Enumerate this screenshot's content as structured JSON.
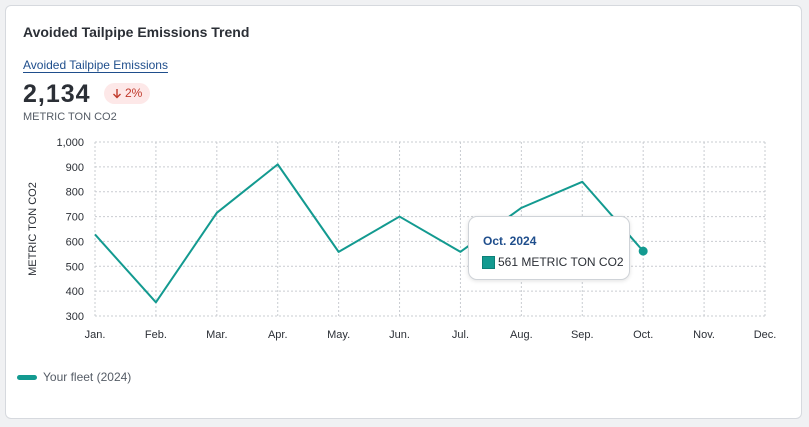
{
  "card": {
    "title": "Avoided Tailpipe Emissions Trend",
    "metric_label": "Avoided Tailpipe Emissions",
    "metric_value": "2,134",
    "delta": "2%",
    "delta_direction": "down",
    "unit": "METRIC TON CO2"
  },
  "tooltip": {
    "title": "Oct. 2024",
    "value_text": "561 METRIC TON CO2"
  },
  "legend": {
    "label": "Your fleet (2024)"
  },
  "colors": {
    "series": "#139a90",
    "delta_text": "#c0392b",
    "delta_bg": "#fde8e8",
    "link": "#1f4e8c"
  },
  "chart_data": {
    "type": "line",
    "title": "",
    "xlabel": "",
    "ylabel": "METRIC TON CO2",
    "categories": [
      "Jan.",
      "Feb.",
      "Mar.",
      "Apr.",
      "May.",
      "Jun.",
      "Jul.",
      "Aug.",
      "Sep.",
      "Oct.",
      "Nov.",
      "Dec."
    ],
    "y_ticks": [
      "300",
      "400",
      "500",
      "600",
      "700",
      "800",
      "900",
      "1,000"
    ],
    "ylim": [
      300,
      1000
    ],
    "grid": true,
    "legend_position": "bottom-left",
    "series": [
      {
        "name": "Your fleet (2024)",
        "values": [
          628,
          355,
          715,
          910,
          558,
          700,
          558,
          735,
          840,
          561,
          null,
          null
        ]
      }
    ],
    "highlighted_point": {
      "category": "Oct.",
      "value": 561
    }
  }
}
